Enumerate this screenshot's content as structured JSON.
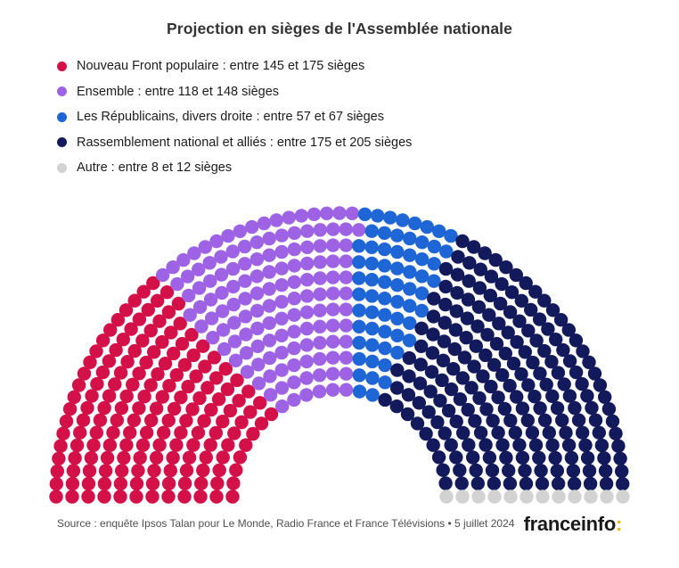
{
  "title": "Projection en sièges de l'Assemblée nationale",
  "legend": {
    "items": [
      {
        "label": "Nouveau Front populaire : entre 145 et 175 sièges",
        "color": "#d31148"
      },
      {
        "label": "Ensemble : entre 118 et 148 sièges",
        "color": "#9e63e4"
      },
      {
        "label": "Les Républicains, divers droite : entre 57 et 67 sièges",
        "color": "#1e66d6"
      },
      {
        "label": "Rassemblement national et alliés : entre 175 et 205 sièges",
        "color": "#131a5c"
      },
      {
        "label": "Autre : entre 8 et 12 sièges",
        "color": "#d2d2d2"
      }
    ]
  },
  "chart_data": {
    "type": "parliament-hemicycle",
    "title": "Projection en sièges de l'Assemblée nationale",
    "total_seats": 577,
    "rows": 12,
    "series": [
      {
        "name": "Nouveau Front populaire",
        "seats_min": 145,
        "seats_max": 175,
        "seats_rendered": 165,
        "color": "#d31148"
      },
      {
        "name": "Ensemble",
        "seats_min": 118,
        "seats_max": 148,
        "seats_rendered": 137,
        "color": "#9e63e4"
      },
      {
        "name": "Les Républicains, divers droite",
        "seats_min": 57,
        "seats_max": 67,
        "seats_rendered": 63,
        "color": "#1e66d6"
      },
      {
        "name": "Rassemblement national et alliés",
        "seats_min": 175,
        "seats_max": 205,
        "seats_rendered": 200,
        "color": "#131a5c"
      },
      {
        "name": "Autre",
        "seats_min": 8,
        "seats_max": 12,
        "seats_rendered": 12,
        "color": "#d2d2d2"
      }
    ],
    "layout_hints": {
      "legend_position": "top-left",
      "order": "left-to-right by angle",
      "grid": false
    }
  },
  "footer": {
    "source": "Source : enquête Ipsos Talan pour Le Monde, Radio France et France Télévisions • 5 juillet 2024",
    "brand": {
      "name": "franceinfo",
      "colon": ":",
      "colon_color": "#efb40e"
    }
  }
}
